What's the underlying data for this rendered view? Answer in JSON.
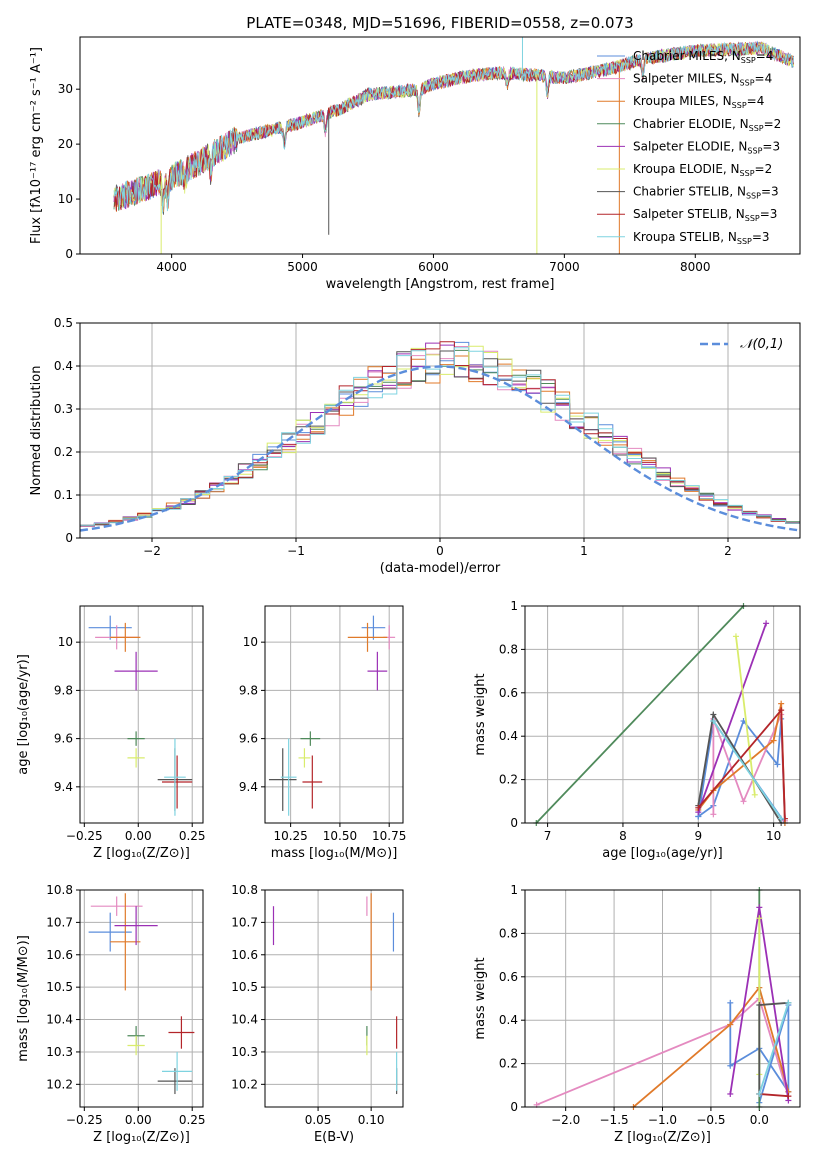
{
  "figure": {
    "title": "PLATE=0348, MJD=51696, FIBERID=0558, z=0.073"
  },
  "series_styles": [
    {
      "name": "Chabrier MILES",
      "nssp": "4",
      "color": "#5B8DDB"
    },
    {
      "name": "Salpeter MILES",
      "nssp": "4",
      "color": "#E48AC0"
    },
    {
      "name": "Kroupa MILES",
      "nssp": "4",
      "color": "#E07A2A"
    },
    {
      "name": "Chabrier ELODIE",
      "nssp": "2",
      "color": "#4F8A5B"
    },
    {
      "name": "Salpeter ELODIE",
      "nssp": "3",
      "color": "#9B30B5"
    },
    {
      "name": "Kroupa ELODIE",
      "nssp": "2",
      "color": "#D9EC6C"
    },
    {
      "name": "Chabrier STELIB",
      "nssp": "3",
      "color": "#555555"
    },
    {
      "name": "Salpeter STELIB",
      "nssp": "3",
      "color": "#B3252A"
    },
    {
      "name": "Kroupa STELIB",
      "nssp": "3",
      "color": "#7FD3E0"
    }
  ],
  "chart_data": [
    {
      "id": "spectrum",
      "type": "line",
      "xlabel": "wavelength [Angstrom, rest frame]",
      "ylabel": "Flux [fλ10⁻¹⁷ erg cm⁻² s⁻¹ A⁻¹]",
      "xlim": [
        3300,
        8800
      ],
      "ylim": [
        0,
        39.5
      ],
      "xticks": [
        4000,
        5000,
        6000,
        7000,
        8000
      ],
      "yticks": [
        0,
        10,
        20,
        30
      ],
      "grid": false,
      "legend": "upper-right",
      "continuum": [
        [
          3560,
          10
        ],
        [
          3800,
          12
        ],
        [
          4000,
          14
        ],
        [
          4200,
          16.5
        ],
        [
          4500,
          21
        ],
        [
          5000,
          24
        ],
        [
          5300,
          26.5
        ],
        [
          5500,
          29
        ],
        [
          5900,
          30
        ],
        [
          6000,
          31
        ],
        [
          6300,
          32.5
        ],
        [
          6500,
          33
        ],
        [
          6800,
          32.5
        ],
        [
          7000,
          32
        ],
        [
          7200,
          33
        ],
        [
          7400,
          34
        ],
        [
          7600,
          35.5
        ],
        [
          8000,
          37
        ],
        [
          8500,
          37.5
        ],
        [
          8750,
          35
        ]
      ],
      "dips": [
        [
          3935,
          -4
        ],
        [
          3970,
          -4
        ],
        [
          4102,
          -2
        ],
        [
          4300,
          -3
        ],
        [
          4861,
          -3
        ],
        [
          5175,
          -3
        ],
        [
          5890,
          -4
        ],
        [
          6563,
          -2
        ],
        [
          6870,
          -3
        ],
        [
          7600,
          -3
        ]
      ]
    },
    {
      "id": "residuals",
      "type": "histogram",
      "xlabel": "(data-model)/error",
      "ylabel": "Normed distribution",
      "xlim": [
        -2.5,
        2.5
      ],
      "ylim": [
        0,
        0.5
      ],
      "xticks": [
        -2,
        -1,
        0,
        1,
        2
      ],
      "yticks": [
        0.0,
        0.1,
        0.2,
        0.3,
        0.4,
        0.5
      ],
      "grid": true,
      "legend": "upper-right",
      "reference": {
        "name": "𝒩(0,1)",
        "mean": 0,
        "sigma": 1
      },
      "bins": 50
    },
    {
      "id": "age_vs_Z",
      "type": "scatter",
      "xlabel": "Z [log₁₀(Z/Z⊙)]",
      "ylabel": "age  [log₁₀(age/yr)]",
      "xlim": [
        -0.27,
        0.3
      ],
      "ylim": [
        9.25,
        10.15
      ],
      "xticks": [
        -0.25,
        0.0,
        0.25
      ],
      "xticklabels": [
        "−0.25",
        "0.00",
        "0.25"
      ],
      "yticks": [
        9.4,
        9.6,
        9.8,
        10.0
      ],
      "grid": true,
      "points": [
        {
          "x": -0.13,
          "y": 10.06,
          "xerr": 0.1,
          "yerr": 0.05
        },
        {
          "x": -0.1,
          "y": 10.02,
          "xerr": 0.1,
          "yerr": 0.05
        },
        {
          "x": -0.06,
          "y": 10.02,
          "xerr": 0.07,
          "yerr": 0.06
        },
        {
          "x": -0.01,
          "y": 9.6,
          "xerr": 0.04,
          "yerr": 0.03
        },
        {
          "x": -0.01,
          "y": 9.88,
          "xerr": 0.1,
          "yerr": 0.08
        },
        {
          "x": -0.01,
          "y": 9.52,
          "xerr": 0.04,
          "yerr": 0.04
        },
        {
          "x": 0.17,
          "y": 9.43,
          "xerr": 0.08,
          "yerr": 0.13
        },
        {
          "x": 0.18,
          "y": 9.42,
          "xerr": 0.07,
          "yerr": 0.11
        },
        {
          "x": 0.17,
          "y": 9.44,
          "xerr": 0.05,
          "yerr": 0.16
        }
      ]
    },
    {
      "id": "age_vs_mass",
      "type": "scatter",
      "xlabel": "mass [log₁₀(M/M⊙)]",
      "xlim": [
        10.12,
        10.82
      ],
      "ylim": [
        9.25,
        10.15
      ],
      "xticks": [
        10.25,
        10.5,
        10.75
      ],
      "xticklabels": [
        "10.25",
        "10.50",
        "10.75"
      ],
      "yticks": [
        9.4,
        9.6,
        9.8,
        10.0
      ],
      "grid": true,
      "points": [
        {
          "x": 10.67,
          "y": 10.06,
          "xerr": 0.06,
          "yerr": 0.05
        },
        {
          "x": 10.75,
          "y": 10.02,
          "xerr": 0.03,
          "yerr": 0.05
        },
        {
          "x": 10.64,
          "y": 10.02,
          "xerr": 0.1,
          "yerr": 0.06
        },
        {
          "x": 10.35,
          "y": 9.6,
          "xerr": 0.05,
          "yerr": 0.03
        },
        {
          "x": 10.69,
          "y": 9.88,
          "xerr": 0.05,
          "yerr": 0.08
        },
        {
          "x": 10.32,
          "y": 9.52,
          "xerr": 0.03,
          "yerr": 0.04
        },
        {
          "x": 10.21,
          "y": 9.43,
          "xerr": 0.07,
          "yerr": 0.13
        },
        {
          "x": 10.36,
          "y": 9.42,
          "xerr": 0.05,
          "yerr": 0.11
        },
        {
          "x": 10.24,
          "y": 9.44,
          "xerr": 0.04,
          "yerr": 0.16
        }
      ]
    },
    {
      "id": "weights_vs_age",
      "type": "line",
      "xlabel": "age  [log₁₀(age/yr)]",
      "ylabel": "mass weight",
      "xlim": [
        6.7,
        10.35
      ],
      "ylim": [
        0,
        1.0
      ],
      "xticks": [
        7,
        8,
        9,
        10
      ],
      "yticks": [
        0.0,
        0.2,
        0.4,
        0.6,
        0.8,
        1.0
      ],
      "grid": true,
      "series": [
        [
          [
            9.0,
            0.03
          ],
          [
            9.2,
            0.08
          ],
          [
            9.6,
            0.47
          ],
          [
            10.05,
            0.27
          ],
          [
            10.1,
            0.48
          ],
          [
            10.15,
            0.0
          ],
          [
            9.2,
            0.47
          ],
          [
            9.0,
            0.03
          ]
        ],
        [
          [
            9.2,
            0.04
          ],
          [
            9.2,
            0.48
          ],
          [
            9.6,
            0.1
          ],
          [
            10.1,
            0.5
          ],
          [
            10.15,
            0.01
          ]
        ],
        [
          [
            9.0,
            0.06
          ],
          [
            9.2,
            0.15
          ],
          [
            10.0,
            0.38
          ],
          [
            10.1,
            0.55
          ],
          [
            10.15,
            0.0
          ]
        ],
        [
          [
            6.85,
            0.0
          ],
          [
            9.6,
            1.0
          ]
        ],
        [
          [
            9.0,
            0.05
          ],
          [
            9.9,
            0.92
          ]
        ],
        [
          [
            9.5,
            0.86
          ],
          [
            9.75,
            0.13
          ]
        ],
        [
          [
            9.0,
            0.08
          ],
          [
            9.2,
            0.5
          ],
          [
            10.1,
            0.0
          ]
        ],
        [
          [
            9.0,
            0.07
          ],
          [
            10.1,
            0.52
          ],
          [
            10.15,
            0.02
          ]
        ],
        [
          [
            9.2,
            0.47
          ],
          [
            10.1,
            0.02
          ]
        ]
      ]
    },
    {
      "id": "mass_vs_Z",
      "type": "scatter",
      "xlabel": "Z [log₁₀(Z/Z⊙)]",
      "ylabel": "mass [log₁₀(M/M⊙)]",
      "xlim": [
        -0.27,
        0.3
      ],
      "ylim": [
        10.13,
        10.8
      ],
      "xticks": [
        -0.25,
        0.0,
        0.25
      ],
      "xticklabels": [
        "−0.25",
        "0.00",
        "0.25"
      ],
      "yticks": [
        10.2,
        10.3,
        10.4,
        10.5,
        10.6,
        10.7,
        10.8
      ],
      "grid": true,
      "points": [
        {
          "x": -0.13,
          "y": 10.67,
          "xerr": 0.1,
          "yerr": 0.06
        },
        {
          "x": -0.1,
          "y": 10.75,
          "xerr": 0.12,
          "yerr": 0.03
        },
        {
          "x": -0.06,
          "y": 10.64,
          "xerr": 0.07,
          "yerr": 0.15
        },
        {
          "x": -0.01,
          "y": 10.35,
          "xerr": 0.04,
          "yerr": 0.03
        },
        {
          "x": -0.01,
          "y": 10.69,
          "xerr": 0.1,
          "yerr": 0.06
        },
        {
          "x": -0.01,
          "y": 10.32,
          "xerr": 0.04,
          "yerr": 0.03
        },
        {
          "x": 0.17,
          "y": 10.21,
          "xerr": 0.08,
          "yerr": 0.04
        },
        {
          "x": 0.2,
          "y": 10.36,
          "xerr": 0.06,
          "yerr": 0.05
        },
        {
          "x": 0.18,
          "y": 10.24,
          "xerr": 0.07,
          "yerr": 0.06
        }
      ]
    },
    {
      "id": "mass_vs_ebv",
      "type": "scatter",
      "xlabel": "E(B-V)",
      "xlim": [
        0.0,
        0.13
      ],
      "ylim": [
        10.13,
        10.8
      ],
      "xticks": [
        0.05,
        0.1
      ],
      "xticklabels": [
        "0.05",
        "0.10"
      ],
      "yticks": [
        10.2,
        10.3,
        10.4,
        10.5,
        10.6,
        10.7,
        10.8
      ],
      "grid": true,
      "points": [
        {
          "x": 0.121,
          "y": 10.67,
          "yerr": 0.06
        },
        {
          "x": 0.096,
          "y": 10.75,
          "yerr": 0.03
        },
        {
          "x": 0.1,
          "y": 10.64,
          "yerr": 0.15
        },
        {
          "x": 0.096,
          "y": 10.35,
          "yerr": 0.03
        },
        {
          "x": 0.008,
          "y": 10.69,
          "yerr": 0.06
        },
        {
          "x": 0.096,
          "y": 10.32,
          "yerr": 0.03
        },
        {
          "x": 0.124,
          "y": 10.21,
          "yerr": 0.04
        },
        {
          "x": 0.124,
          "y": 10.36,
          "yerr": 0.05
        },
        {
          "x": 0.124,
          "y": 10.24,
          "yerr": 0.06
        }
      ]
    },
    {
      "id": "weights_vs_Z",
      "type": "line",
      "xlabel": "Z [log₁₀(Z/Z⊙)]",
      "ylabel": "mass weight",
      "xlim": [
        -2.42,
        0.42
      ],
      "ylim": [
        0,
        1.0
      ],
      "xticks": [
        -2.0,
        -1.5,
        -1.0,
        -0.5,
        0.0
      ],
      "xticklabels": [
        "−2.0",
        "−1.5",
        "−1.0",
        "−0.5",
        "0.0"
      ],
      "yticks": [
        0.0,
        0.2,
        0.4,
        0.6,
        0.8,
        1.0
      ],
      "grid": true,
      "series": [
        [
          [
            -0.3,
            0.48
          ],
          [
            -0.3,
            0.19
          ],
          [
            0.0,
            0.27
          ],
          [
            0.3,
            0.07
          ],
          [
            0.3,
            0.47
          ],
          [
            0.0,
            0.02
          ]
        ],
        [
          [
            -2.3,
            0.01
          ],
          [
            -0.3,
            0.38
          ],
          [
            0.0,
            0.5
          ],
          [
            0.3,
            0.05
          ]
        ],
        [
          [
            -1.3,
            0.0
          ],
          [
            -0.3,
            0.38
          ],
          [
            0.0,
            0.55
          ],
          [
            0.3,
            0.07
          ]
        ],
        [
          [
            0.0,
            0.0
          ],
          [
            0.0,
            1.0
          ]
        ],
        [
          [
            -0.3,
            0.06
          ],
          [
            0.0,
            0.92
          ],
          [
            0.3,
            0.03
          ]
        ],
        [
          [
            0.0,
            0.15
          ],
          [
            0.0,
            0.87
          ]
        ],
        [
          [
            0.0,
            0.06
          ],
          [
            0.0,
            0.47
          ],
          [
            0.3,
            0.48
          ]
        ],
        [
          [
            0.0,
            0.06
          ],
          [
            0.3,
            0.05
          ]
        ],
        [
          [
            0.0,
            0.06
          ],
          [
            0.3,
            0.48
          ]
        ]
      ]
    }
  ]
}
